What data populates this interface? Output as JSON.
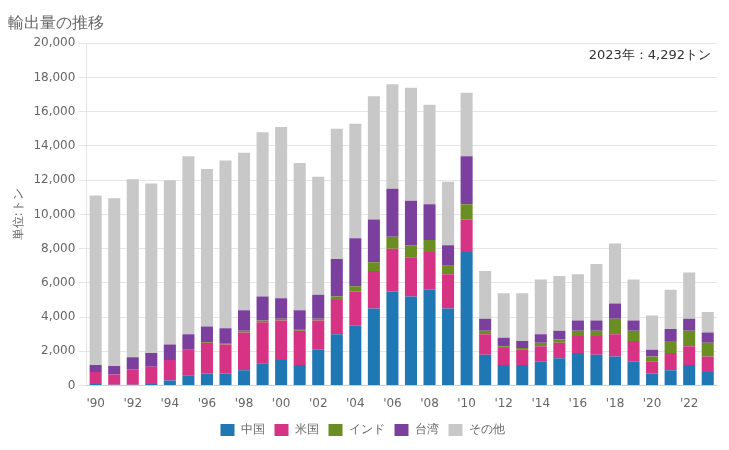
{
  "chart_data": {
    "type": "bar",
    "stacked": true,
    "title": "輸出量の推移",
    "ylabel": "単位:トン",
    "annotation": "2023年：4,292トン",
    "categories": [
      "'90",
      null,
      "'92",
      null,
      "'94",
      null,
      "'96",
      null,
      "'98",
      null,
      "'00",
      null,
      "'02",
      null,
      "'04",
      null,
      "'06",
      null,
      "'08",
      null,
      "'10",
      null,
      "'12",
      null,
      "'14",
      null,
      "'16",
      null,
      "'18",
      null,
      "'20",
      null,
      "'22",
      null
    ],
    "series": [
      {
        "name": "中国",
        "color": "#1f77b4",
        "values": [
          100,
          50,
          50,
          100,
          300,
          600,
          700,
          700,
          900,
          1300,
          1500,
          1200,
          2100,
          3000,
          3500,
          4500,
          5500,
          5200,
          5600,
          4500,
          7800,
          1800,
          1200,
          1200,
          1400,
          1600,
          1900,
          1800,
          1700,
          1400,
          700,
          900,
          1200,
          800
        ]
      },
      {
        "name": "米国",
        "color": "#d63384",
        "values": [
          700,
          600,
          900,
          1000,
          1200,
          1500,
          1800,
          1700,
          2200,
          2400,
          2300,
          2000,
          1700,
          2000,
          2000,
          2200,
          2500,
          2300,
          2200,
          2000,
          1900,
          1200,
          1000,
          900,
          900,
          900,
          1000,
          1100,
          1300,
          1200,
          700,
          1000,
          1100,
          900
        ]
      },
      {
        "name": "インド",
        "color": "#6b8e23",
        "values": [
          0,
          0,
          0,
          0,
          0,
          0,
          50,
          50,
          100,
          100,
          100,
          100,
          100,
          200,
          300,
          500,
          700,
          700,
          700,
          500,
          900,
          200,
          100,
          100,
          200,
          200,
          300,
          300,
          900,
          600,
          300,
          700,
          900,
          800
        ]
      },
      {
        "name": "台湾",
        "color": "#7b3f9e",
        "values": [
          400,
          500,
          700,
          800,
          900,
          900,
          900,
          900,
          1200,
          1400,
          1200,
          1100,
          1400,
          2200,
          2800,
          2500,
          2800,
          2600,
          2100,
          1200,
          2800,
          700,
          500,
          400,
          500,
          500,
          600,
          600,
          900,
          600,
          400,
          700,
          700,
          600
        ]
      },
      {
        "name": "その他",
        "color": "#c8c8c8",
        "values": [
          9900,
          9800,
          10400,
          9900,
          9600,
          10400,
          9200,
          9800,
          9200,
          9600,
          10000,
          8600,
          6900,
          7600,
          6700,
          7200,
          6100,
          6600,
          5800,
          3700,
          3700,
          2800,
          2600,
          2800,
          3200,
          3200,
          2700,
          3300,
          3500,
          2400,
          2000,
          2300,
          2700,
          1200
        ]
      }
    ],
    "ylim": [
      0,
      20000
    ],
    "yticks": [
      0,
      {
        "value": 2000,
        "label": "2,000"
      },
      {
        "value": 4000,
        "label": "4,000"
      },
      {
        "value": 6000,
        "label": "6,000"
      },
      {
        "value": 8000,
        "label": "8,000"
      },
      {
        "value": 10000,
        "label": "10,000"
      },
      {
        "value": 12000,
        "label": "12,000"
      },
      {
        "value": 14000,
        "label": "14,000"
      },
      {
        "value": 16000,
        "label": "16,000"
      },
      {
        "value": 18000,
        "label": "18,000"
      },
      {
        "value": 20000,
        "label": "20,000"
      }
    ],
    "grid": true,
    "legend": "bottom"
  }
}
